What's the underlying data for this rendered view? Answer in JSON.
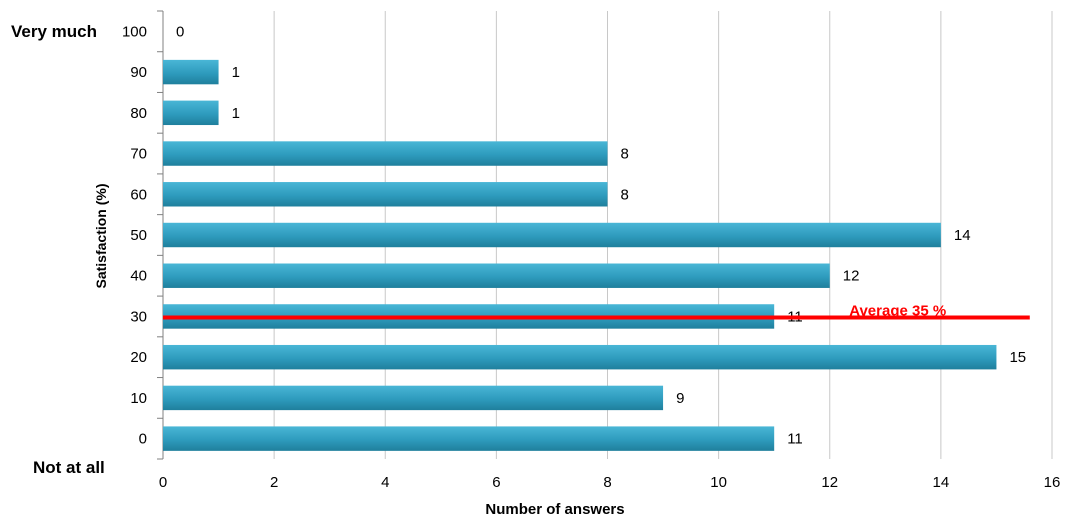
{
  "chart_data": {
    "type": "bar",
    "orientation": "horizontal",
    "categories": [
      "100",
      "90",
      "80",
      "70",
      "60",
      "50",
      "40",
      "30",
      "20",
      "10",
      "0"
    ],
    "values": [
      0,
      1,
      1,
      8,
      8,
      14,
      12,
      11,
      15,
      9,
      11
    ],
    "xlabel": "Number of answers",
    "ylabel": "Satisfaction  (%)",
    "xlim": [
      0,
      16
    ],
    "xticks": [
      "0",
      "2",
      "4",
      "6",
      "8",
      "10",
      "12",
      "14",
      "16"
    ],
    "grid": "vertical",
    "legend": "none",
    "end_labels": {
      "top": "Very much",
      "bottom": "Not at all"
    },
    "reference_line": {
      "label": "Average 35 %",
      "at_category": "30"
    },
    "colors": {
      "bar": "#2e9bbd",
      "bar_highlight": "#49b6d6",
      "bar_shadow": "#1f7f9c",
      "reference_line": "#ff0000",
      "grid": "#c8c8c8",
      "axis": "#808080",
      "text": "#000000"
    }
  }
}
